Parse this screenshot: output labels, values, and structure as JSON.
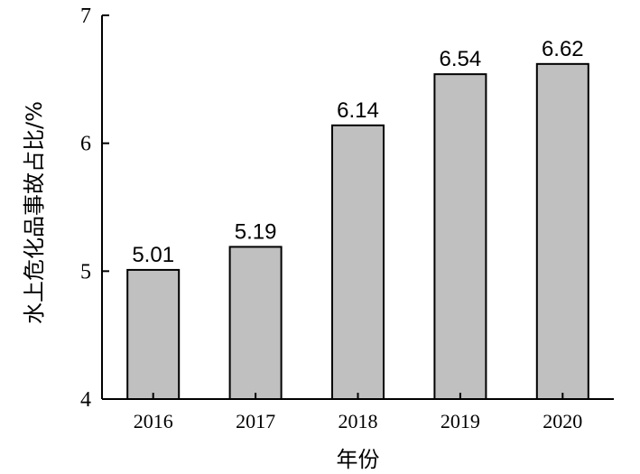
{
  "chart_data": {
    "type": "bar",
    "categories": [
      "2016",
      "2017",
      "2018",
      "2019",
      "2020"
    ],
    "values": [
      5.01,
      5.19,
      6.14,
      6.54,
      6.62
    ],
    "data_labels": [
      "5.01",
      "5.19",
      "6.14",
      "6.54",
      "6.62"
    ],
    "xlabel": "年份",
    "ylabel": "水上危化品事故占比/%",
    "ylim": [
      4,
      7
    ],
    "yticks": [
      4,
      5,
      6,
      7
    ],
    "grid": false,
    "bar_color": "#c0c0c0",
    "edge_color": "#000000"
  }
}
